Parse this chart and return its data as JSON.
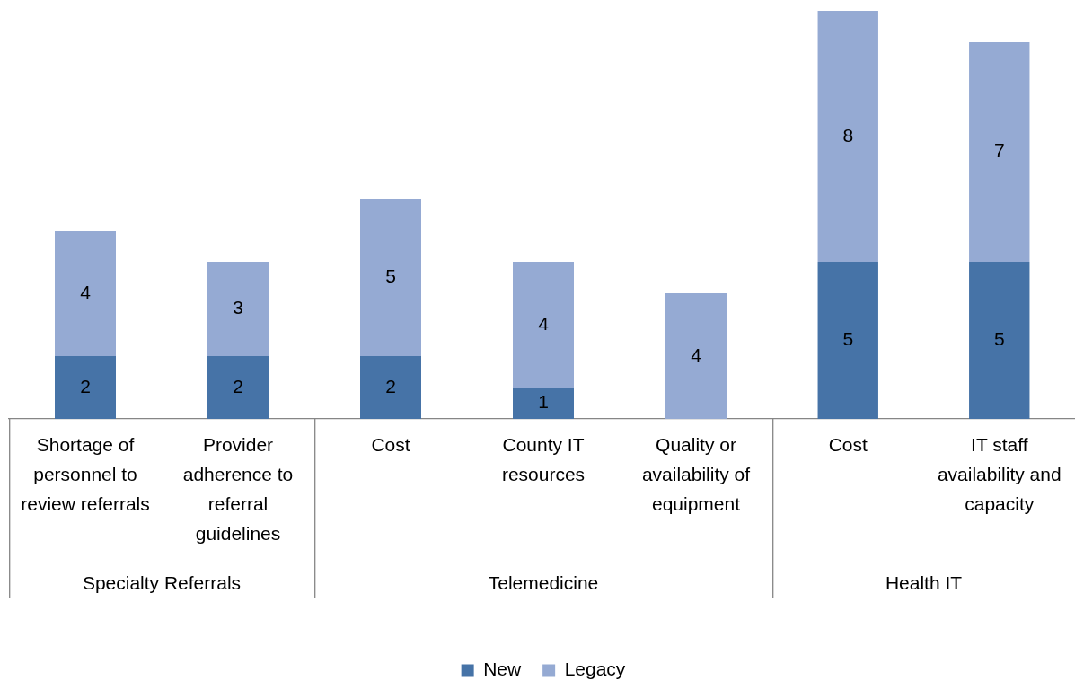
{
  "chart_data": [
    {
      "type": "bar",
      "stacked": true,
      "data_labels": true,
      "grid": false,
      "xlabel": "Specialty Referrals",
      "categories": [
        "Shortage of personnel to review referrals",
        "Provider adherence to referral guidelines"
      ],
      "series": [
        {
          "color": "#4673a7",
          "values": [
            2,
            2
          ]
        },
        {
          "color": "#95aad3",
          "values": [
            4,
            3
          ]
        }
      ]
    },
    {
      "type": "bar",
      "stacked": true,
      "data_labels": true,
      "grid": false,
      "legend": "bottom",
      "xlabel": "Telemedicine",
      "categories": [
        "Cost",
        "County IT resources",
        "Quality or availability of equipment"
      ],
      "series": [
        {
          "name": "New",
          "color": "#4673a7",
          "values": [
            2,
            1,
            null
          ]
        },
        {
          "name": "Legacy",
          "color": "#95aad3",
          "values": [
            5,
            4,
            4
          ]
        }
      ]
    },
    {
      "type": "bar",
      "stacked": true,
      "data_labels": true,
      "grid": false,
      "xlabel": "Health IT",
      "categories": [
        "Cost",
        "IT staff availability and capacity"
      ],
      "series": [
        {
          "color": "#4673a7",
          "values": [
            5,
            5
          ]
        },
        {
          "color": "#95aad3",
          "values": [
            8,
            7
          ]
        }
      ]
    }
  ]
}
